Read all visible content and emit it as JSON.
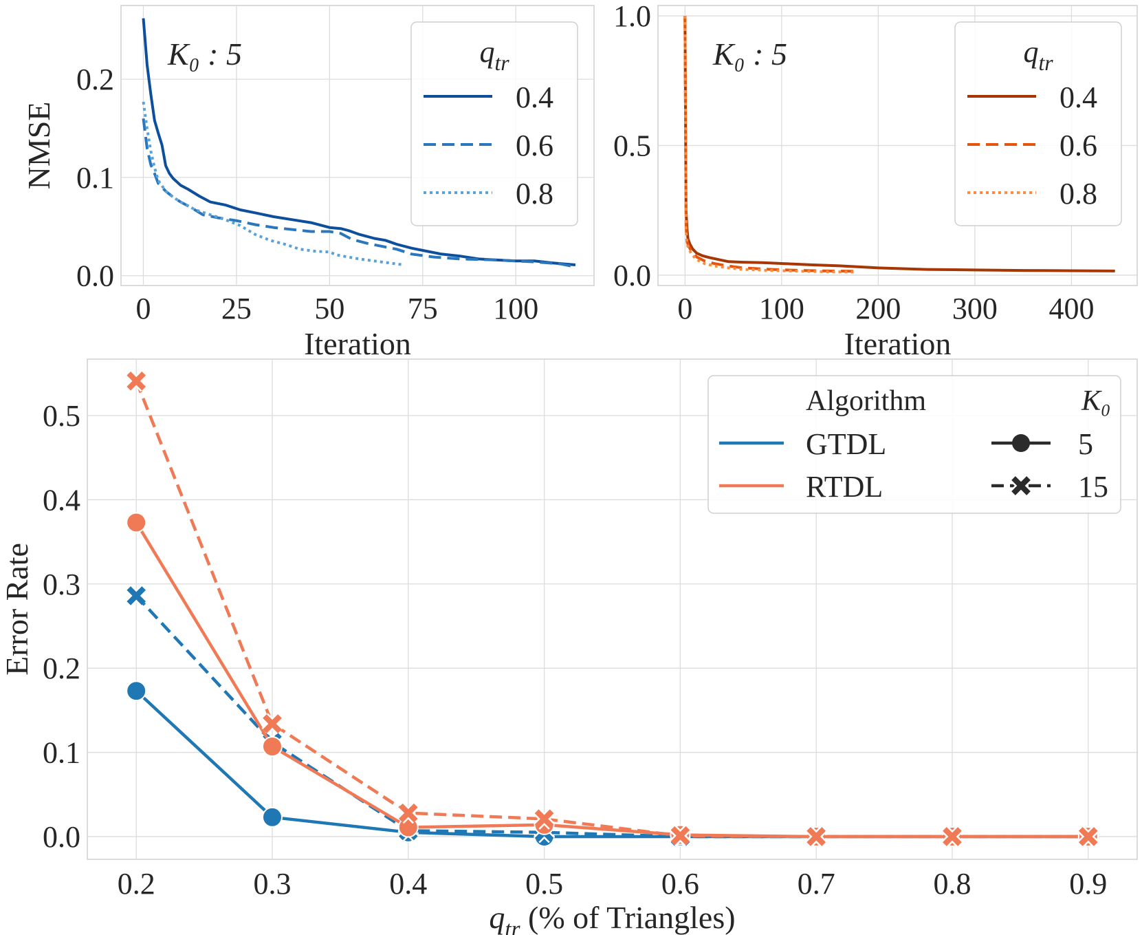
{
  "colors": {
    "blue1": "#0d4f9c",
    "blue2": "#2a77bd",
    "blue3": "#58a2d8",
    "orange1": "#a63603",
    "orange2": "#e6550d",
    "orange3": "#fd8d3c",
    "gtdl": "#1f77b4",
    "rtdl": "#f07a55",
    "grid": "#dcdcdc",
    "frame": "#cfcfcf",
    "text": "#262626"
  },
  "chart_data": [
    {
      "type": "line",
      "panel": "top-left",
      "annotation": "K₀ : 5",
      "xlabel": "Iteration",
      "ylabel": "NMSE",
      "xlim": [
        -6,
        121
      ],
      "ylim": [
        -0.01,
        0.275
      ],
      "xticks": [
        0,
        25,
        50,
        75,
        100
      ],
      "yticks": [
        0.0,
        0.1,
        0.2
      ],
      "xtick_labels": [
        "0",
        "25",
        "50",
        "75",
        "100"
      ],
      "ytick_labels": [
        "0.0",
        "0.1",
        "0.2"
      ],
      "legend": {
        "title": "q_tr",
        "title_main": "q",
        "title_sub": "tr",
        "position": "top-right"
      },
      "series": [
        {
          "name": "0.4",
          "style": "solid",
          "color_key": "blue1",
          "x": [
            0,
            1,
            2,
            3,
            4,
            5,
            6,
            7,
            8,
            10,
            12,
            15,
            18,
            22,
            26,
            30,
            35,
            40,
            45,
            50,
            53,
            55,
            58,
            62,
            65,
            68,
            72,
            76,
            80,
            85,
            90,
            95,
            100,
            105,
            110,
            113,
            116
          ],
          "y": [
            0.262,
            0.215,
            0.185,
            0.158,
            0.145,
            0.133,
            0.112,
            0.104,
            0.099,
            0.092,
            0.088,
            0.081,
            0.075,
            0.072,
            0.067,
            0.064,
            0.06,
            0.057,
            0.054,
            0.049,
            0.048,
            0.046,
            0.042,
            0.038,
            0.036,
            0.032,
            0.028,
            0.025,
            0.022,
            0.02,
            0.017,
            0.016,
            0.015,
            0.015,
            0.013,
            0.012,
            0.011
          ]
        },
        {
          "name": "0.6",
          "style": "dashed",
          "color_key": "blue2",
          "x": [
            0,
            1,
            2,
            3,
            4,
            6,
            8,
            10,
            13,
            16,
            20,
            25,
            30,
            35,
            40,
            45,
            50,
            53,
            56,
            60,
            64,
            68,
            72,
            78,
            85,
            95,
            105,
            112,
            116
          ],
          "y": [
            0.16,
            0.13,
            0.113,
            0.104,
            0.094,
            0.086,
            0.08,
            0.075,
            0.069,
            0.062,
            0.059,
            0.056,
            0.052,
            0.049,
            0.047,
            0.045,
            0.045,
            0.043,
            0.037,
            0.033,
            0.03,
            0.027,
            0.022,
            0.019,
            0.017,
            0.016,
            0.014,
            0.012,
            0.009
          ]
        },
        {
          "name": "0.8",
          "style": "dotted",
          "color_key": "blue3",
          "x": [
            0,
            1,
            2,
            3,
            4,
            6,
            8,
            10,
            14,
            18,
            22,
            26,
            30,
            34,
            38,
            42,
            46,
            50,
            52,
            55,
            58,
            62,
            66,
            70
          ],
          "y": [
            0.177,
            0.15,
            0.127,
            0.11,
            0.097,
            0.086,
            0.08,
            0.075,
            0.067,
            0.062,
            0.057,
            0.051,
            0.042,
            0.036,
            0.032,
            0.027,
            0.025,
            0.024,
            0.021,
            0.019,
            0.017,
            0.015,
            0.013,
            0.011
          ]
        }
      ]
    },
    {
      "type": "line",
      "panel": "top-right",
      "annotation": "K₀ : 5",
      "xlabel": "Iteration",
      "ylabel": "",
      "xlim": [
        -28,
        468
      ],
      "ylim": [
        -0.04,
        1.04
      ],
      "xticks": [
        0,
        100,
        200,
        300,
        400
      ],
      "yticks": [
        0.0,
        0.5,
        1.0
      ],
      "xtick_labels": [
        "0",
        "100",
        "200",
        "300",
        "400"
      ],
      "ytick_labels": [
        "0.0",
        "0.5",
        "1.0"
      ],
      "legend": {
        "title": "q_tr",
        "title_main": "q",
        "title_sub": "tr",
        "position": "top-right"
      },
      "series": [
        {
          "name": "0.4",
          "style": "solid",
          "color_key": "orange1",
          "x": [
            0,
            1,
            2,
            3,
            5,
            8,
            12,
            18,
            25,
            35,
            45,
            60,
            80,
            100,
            130,
            160,
            200,
            250,
            300,
            350,
            400,
            445
          ],
          "y": [
            1.0,
            0.25,
            0.18,
            0.14,
            0.12,
            0.1,
            0.085,
            0.075,
            0.068,
            0.06,
            0.052,
            0.05,
            0.048,
            0.045,
            0.04,
            0.036,
            0.028,
            0.022,
            0.02,
            0.018,
            0.017,
            0.016
          ]
        },
        {
          "name": "0.6",
          "style": "dashed",
          "color_key": "orange2",
          "x": [
            0,
            1,
            2,
            4,
            7,
            12,
            20,
            30,
            45,
            60,
            90,
            120,
            150,
            180
          ],
          "y": [
            1.0,
            0.2,
            0.13,
            0.11,
            0.09,
            0.07,
            0.055,
            0.045,
            0.035,
            0.028,
            0.022,
            0.018,
            0.016,
            0.015
          ]
        },
        {
          "name": "0.8",
          "style": "dotted",
          "color_key": "orange3",
          "x": [
            0,
            1,
            2,
            4,
            7,
            12,
            20,
            30,
            45,
            60,
            90,
            120,
            150,
            175
          ],
          "y": [
            1.0,
            0.18,
            0.12,
            0.1,
            0.08,
            0.06,
            0.045,
            0.036,
            0.028,
            0.022,
            0.018,
            0.015,
            0.013,
            0.012
          ]
        }
      ]
    },
    {
      "type": "line",
      "panel": "bottom",
      "xlabel_main": "q",
      "xlabel_sub": "tr",
      "xlabel_rest": "  (% of Triangles)",
      "ylabel": "Error Rate",
      "xlim": [
        0.164,
        0.936
      ],
      "ylim": [
        -0.027,
        0.567
      ],
      "xticks": [
        0.2,
        0.3,
        0.4,
        0.5,
        0.6,
        0.7,
        0.8,
        0.9
      ],
      "yticks": [
        0.0,
        0.1,
        0.2,
        0.3,
        0.4,
        0.5
      ],
      "xtick_labels": [
        "0.2",
        "0.3",
        "0.4",
        "0.5",
        "0.6",
        "0.7",
        "0.8",
        "0.9"
      ],
      "ytick_labels": [
        "0.0",
        "0.1",
        "0.2",
        "0.3",
        "0.4",
        "0.5"
      ],
      "legend": {
        "position": "top-right",
        "algorithm_title": "Algorithm",
        "k_title": "K₀",
        "algorithms": [
          "GTDL",
          "RTDL"
        ],
        "k_values": [
          "5",
          "15"
        ]
      },
      "x": [
        0.2,
        0.3,
        0.4,
        0.5,
        0.6,
        0.7,
        0.8,
        0.9
      ],
      "series": [
        {
          "name": "GTDL, K0=5",
          "algorithm": "GTDL",
          "k0": "5",
          "style": "solid",
          "marker": "circle",
          "color_key": "gtdl",
          "values": [
            0.173,
            0.023,
            0.005,
            0.0,
            0.0,
            0.0,
            0.0,
            0.0
          ]
        },
        {
          "name": "GTDL, K0=15",
          "algorithm": "GTDL",
          "k0": "15",
          "style": "dashed",
          "marker": "x",
          "color_key": "gtdl",
          "values": [
            0.286,
            0.112,
            0.007,
            0.005,
            0.0,
            0.0,
            0.0,
            0.0
          ]
        },
        {
          "name": "RTDL, K0=5",
          "algorithm": "RTDL",
          "k0": "5",
          "style": "solid",
          "marker": "circle",
          "color_key": "rtdl",
          "values": [
            0.373,
            0.107,
            0.011,
            0.014,
            0.002,
            0.0,
            0.0,
            0.0
          ]
        },
        {
          "name": "RTDL, K0=15",
          "algorithm": "RTDL",
          "k0": "15",
          "style": "dashed",
          "marker": "x",
          "color_key": "rtdl",
          "values": [
            0.541,
            0.134,
            0.028,
            0.021,
            0.001,
            0.0,
            0.0,
            0.0
          ]
        }
      ]
    }
  ]
}
